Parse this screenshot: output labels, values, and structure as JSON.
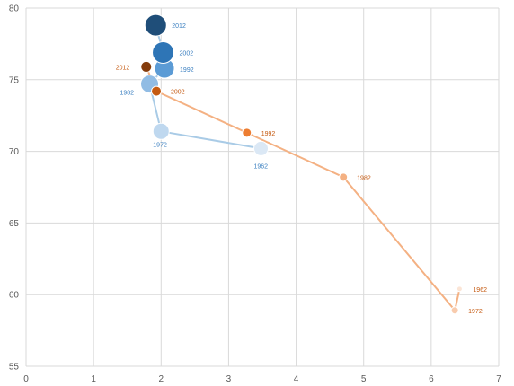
{
  "chart_data": {
    "type": "scatter",
    "subtype": "connected-bubble",
    "title": "",
    "xlabel": "",
    "ylabel": "",
    "xlim": [
      0,
      7
    ],
    "ylim": [
      55,
      80
    ],
    "xticks": [
      0,
      1,
      2,
      3,
      4,
      5,
      6,
      7
    ],
    "yticks": [
      55,
      60,
      65,
      70,
      75,
      80
    ],
    "grid": true,
    "legend": "none",
    "series": [
      {
        "line_color": "#a9cbe6",
        "label_color": "#3a7fc0",
        "points": [
          {
            "label": "1962",
            "x": 3.48,
            "y": 70.2,
            "size": 8,
            "color": "#dbe8f5"
          },
          {
            "label": "1972",
            "x": 2.0,
            "y": 71.4,
            "size": 9,
            "color": "#bfd8ef"
          },
          {
            "label": "1982",
            "x": 1.83,
            "y": 74.7,
            "size": 10,
            "color": "#91bce4"
          },
          {
            "label": "1992",
            "x": 2.05,
            "y": 75.8,
            "size": 11,
            "color": "#5b9bd5"
          },
          {
            "label": "2002",
            "x": 2.03,
            "y": 76.9,
            "size": 12,
            "color": "#2e75b6"
          },
          {
            "label": "2012",
            "x": 1.92,
            "y": 78.8,
            "size": 12,
            "color": "#1f4e79"
          }
        ]
      },
      {
        "line_color": "#f4b183",
        "label_color": "#c55a11",
        "points": [
          {
            "label": "1962",
            "x": 6.42,
            "y": 60.4,
            "size": 3,
            "color": "#fbe5d6"
          },
          {
            "label": "1972",
            "x": 6.35,
            "y": 58.9,
            "size": 4,
            "color": "#f8cbad"
          },
          {
            "label": "1982",
            "x": 4.7,
            "y": 68.2,
            "size": 4.5,
            "color": "#f4b183"
          },
          {
            "label": "1992",
            "x": 3.27,
            "y": 71.3,
            "size": 5,
            "color": "#ed7d31"
          },
          {
            "label": "2002",
            "x": 1.93,
            "y": 74.2,
            "size": 5.5,
            "color": "#c55a11"
          },
          {
            "label": "2012",
            "x": 1.78,
            "y": 75.9,
            "size": 6,
            "color": "#843c0c"
          }
        ]
      }
    ]
  }
}
